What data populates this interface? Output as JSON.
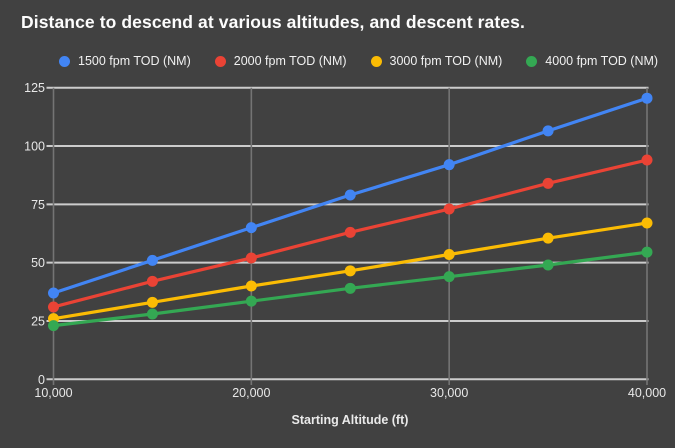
{
  "title": "Distance to descend at various altitudes, and descent rates.",
  "colors": {
    "background": "#414141",
    "grid_horizontal": "#cccccc",
    "grid_vertical": "#747474",
    "tick_label": "#e8e8e8",
    "title_text": "#fdfdfd",
    "legend_text": "#f1f1f1"
  },
  "chart_data": {
    "type": "line",
    "title": "Distance to descend at various altitudes, and descent rates.",
    "xlabel": "Starting Altitude (ft)",
    "ylabel": "",
    "grid": true,
    "legend_position": "top",
    "x_range": [
      10000,
      40000
    ],
    "y_range": [
      0,
      125
    ],
    "x": [
      10000,
      15000,
      20000,
      25000,
      30000,
      35000,
      40000
    ],
    "x_tick_labels": [
      {
        "value": 10000,
        "label": "10,000"
      },
      {
        "value": 20000,
        "label": "20,000"
      },
      {
        "value": 30000,
        "label": "30,000"
      },
      {
        "value": 40000,
        "label": "40,000"
      }
    ],
    "y_ticks": [
      0,
      25,
      50,
      75,
      100,
      125
    ],
    "series": [
      {
        "name": "1500 fpm TOD (NM)",
        "color": "#4285F4",
        "values": [
          37,
          51,
          65,
          79,
          92,
          106.5,
          120.5
        ]
      },
      {
        "name": "2000 fpm TOD (NM)",
        "color": "#EA4335",
        "values": [
          31,
          42,
          52,
          63,
          73,
          84,
          94
        ]
      },
      {
        "name": "3000 fpm TOD (NM)",
        "color": "#FBBC04",
        "values": [
          26,
          33,
          40,
          46.5,
          53.5,
          60.5,
          67
        ]
      },
      {
        "name": "4000 fpm TOD (NM)",
        "color": "#34A853",
        "values": [
          23,
          28,
          33.5,
          39,
          44,
          49,
          54.5
        ]
      }
    ]
  }
}
